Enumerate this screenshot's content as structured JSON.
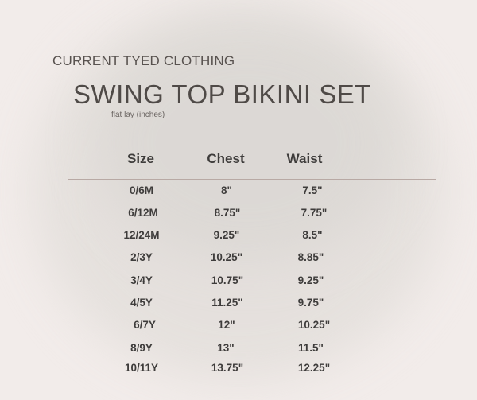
{
  "brand": "CURRENT TYED CLOTHING",
  "title": "SWING TOP BIKINI SET",
  "subtitle": "flat lay (inches)",
  "table": {
    "headers": [
      "Size",
      "Chest",
      "Waist"
    ],
    "rows": [
      [
        "0/6M",
        "8\"",
        "7.5\""
      ],
      [
        "6/12M",
        "8.75\"",
        "7.75\""
      ],
      [
        "12/24M",
        "9.25\"",
        "8.5\""
      ],
      [
        "2/3Y",
        "10.25\"",
        "8.85\""
      ],
      [
        "3/4Y",
        "10.75\"",
        "9.25\""
      ],
      [
        "4/5Y",
        "11.25\"",
        "9.75\""
      ],
      [
        "6/7Y",
        "12\"",
        "10.25\""
      ],
      [
        "8/9Y",
        "13\"",
        "11.5\""
      ],
      [
        "10/11Y",
        "13.75\"",
        "12.25\""
      ]
    ]
  },
  "colors": {
    "background": "#f2ecea",
    "text": "#3e3c3b",
    "rule": "#b8a9a4"
  }
}
